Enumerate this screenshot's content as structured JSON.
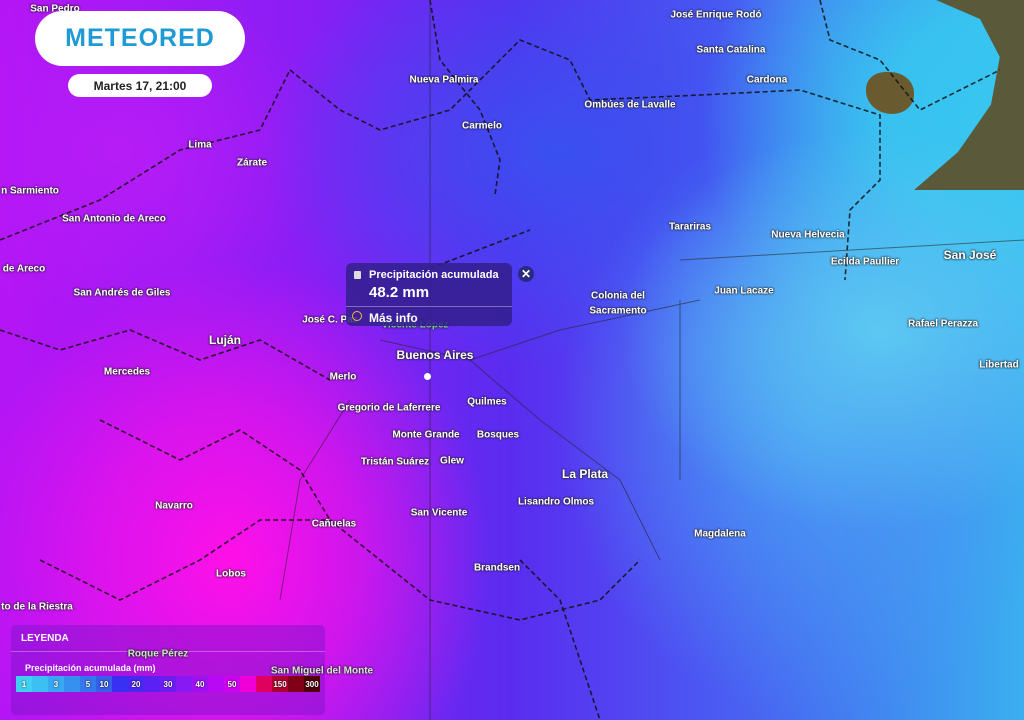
{
  "header": {
    "brand": "METEORED",
    "datetime": "Martes 17, 21:00"
  },
  "popup": {
    "title": "Precipitación acumulada",
    "value": "48.2 mm",
    "more_label": "Más info",
    "close_label": "✕"
  },
  "legend": {
    "title": "LEYENDA",
    "subtitle": "Precipitación acumulada (mm)",
    "scale": [
      {
        "label": "1",
        "color": "#3fd0f2"
      },
      {
        "label": "",
        "color": "#3cc0f2"
      },
      {
        "label": "3",
        "color": "#38a8f2"
      },
      {
        "label": "",
        "color": "#3690f0"
      },
      {
        "label": "5",
        "color": "#3478ee"
      },
      {
        "label": "10",
        "color": "#3460ea"
      },
      {
        "label": "",
        "color": "#3a30f4"
      },
      {
        "label": "20",
        "color": "#4a28f4"
      },
      {
        "label": "",
        "color": "#5a20f4"
      },
      {
        "label": "30",
        "color": "#6e1cf4"
      },
      {
        "label": "",
        "color": "#8818f4"
      },
      {
        "label": "40",
        "color": "#a010f4"
      },
      {
        "label": "",
        "color": "#b808f4"
      },
      {
        "label": "50",
        "color": "#d000f0"
      },
      {
        "label": "",
        "color": "#f000d8"
      },
      {
        "label": "",
        "color": "#e00060"
      },
      {
        "label": "150",
        "color": "#b00030"
      },
      {
        "label": "",
        "color": "#800018"
      },
      {
        "label": "300",
        "color": "#500008"
      }
    ]
  },
  "map": {
    "places": [
      "San Pedro",
      "José Enrique Rodó",
      "Santa Catalina",
      "Cardona",
      "Nueva Palmira",
      "Ombúes de Lavalle",
      "Carmelo",
      "Lima",
      "Zárate",
      "n Sarmiento",
      "San Antonio de Areco",
      "Tarariras",
      "Nueva Helvecia",
      "Ecilda Paullier",
      "San José",
      "de Areco",
      "San Andrés de Giles",
      "Colonia del",
      "Sacramento",
      "Juan Lacaze",
      "José C. Paz",
      "Vicente López",
      "Rafael Perazza",
      "Luján",
      "Buenos Aires",
      "Mercedes",
      "Merlo",
      "Libertad",
      "Quilmes",
      "Gregorio de Laferrere",
      "Monte Grande",
      "Bosques",
      "Tristán Suárez",
      "Glew",
      "La Plata",
      "Lisandro Olmos",
      "Navarro",
      "San Vicente",
      "Cañuelas",
      "Magdalena",
      "Brandsen",
      "Lobos",
      "to de la Riestra",
      "Roque Pérez",
      "San Miguel del Monte"
    ]
  }
}
